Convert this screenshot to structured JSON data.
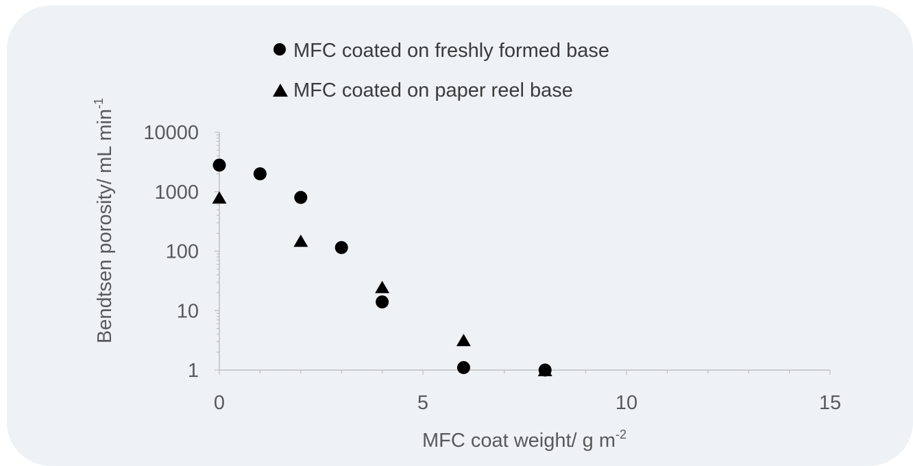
{
  "chart_data": {
    "type": "scatter",
    "title": "",
    "xlabel": {
      "text": "MFC coat weight/ g m",
      "sup": "-2"
    },
    "ylabel": {
      "text": "Bendtsen porosity/ mL min",
      "sup": "-1"
    },
    "xlim": [
      0,
      15
    ],
    "ylim": [
      1,
      10000
    ],
    "y_scale": "log",
    "x_ticks": [
      0,
      5,
      10,
      15
    ],
    "x_tick_labels": [
      "0",
      "5",
      "10",
      "15"
    ],
    "y_ticks": [
      1,
      10,
      100,
      1000,
      10000
    ],
    "y_tick_labels": [
      "1",
      "10",
      "100",
      "1000",
      "10000"
    ],
    "grid": false,
    "legend_position": "top",
    "series": [
      {
        "name": "MFC coated on freshly formed base",
        "marker": "circle",
        "color": "#000000",
        "x": [
          0,
          1,
          2,
          3,
          4,
          6,
          8
        ],
        "y": [
          2800,
          2000,
          800,
          115,
          14,
          1.1,
          1.0
        ]
      },
      {
        "name": "MFC coated on paper reel base",
        "marker": "triangle",
        "color": "#000000",
        "x": [
          0,
          2,
          4,
          6,
          8
        ],
        "y": [
          800,
          150,
          25,
          3.2,
          1.0
        ]
      }
    ]
  }
}
